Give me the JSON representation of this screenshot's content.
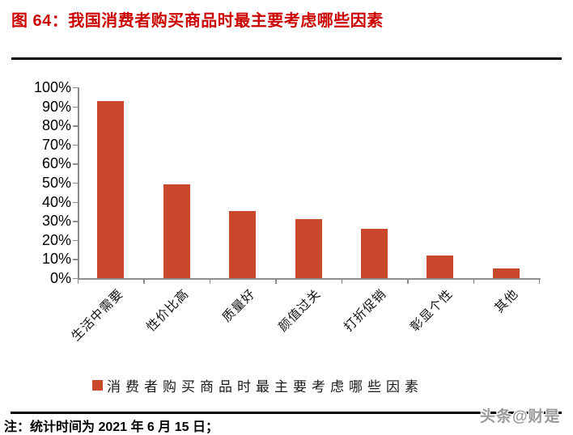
{
  "figure": {
    "title": "图 64：我国消费者购买商品时最主要考虑哪些因素",
    "note": "注：统计时间为 2021 年 6 月 15 日；",
    "watermark": "头条@财是"
  },
  "chart_data": {
    "type": "bar",
    "title": "",
    "categories": [
      "生活中需要",
      "性价比高",
      "质量好",
      "颜值过关",
      "打折促销",
      "彰显个性",
      "其他"
    ],
    "values": [
      93,
      49,
      35,
      31,
      26,
      12,
      5
    ],
    "xlabel": "",
    "ylabel": "",
    "ylim": [
      0,
      100
    ],
    "ytick_step": 10,
    "ytick_suffix": "%",
    "grid": false,
    "legend": [
      "消费者购买商品时最主要考虑哪些因素"
    ],
    "legend_position": "bottom",
    "bar_color": "#c9472a",
    "axis_color": "#8c8c8c"
  },
  "colors": {
    "title_red": "#cc0000",
    "bar": "#c9472a",
    "axis_gray": "#8c8c8c",
    "rule_black": "#000000",
    "watermark_gray": "#9a9a9a"
  }
}
